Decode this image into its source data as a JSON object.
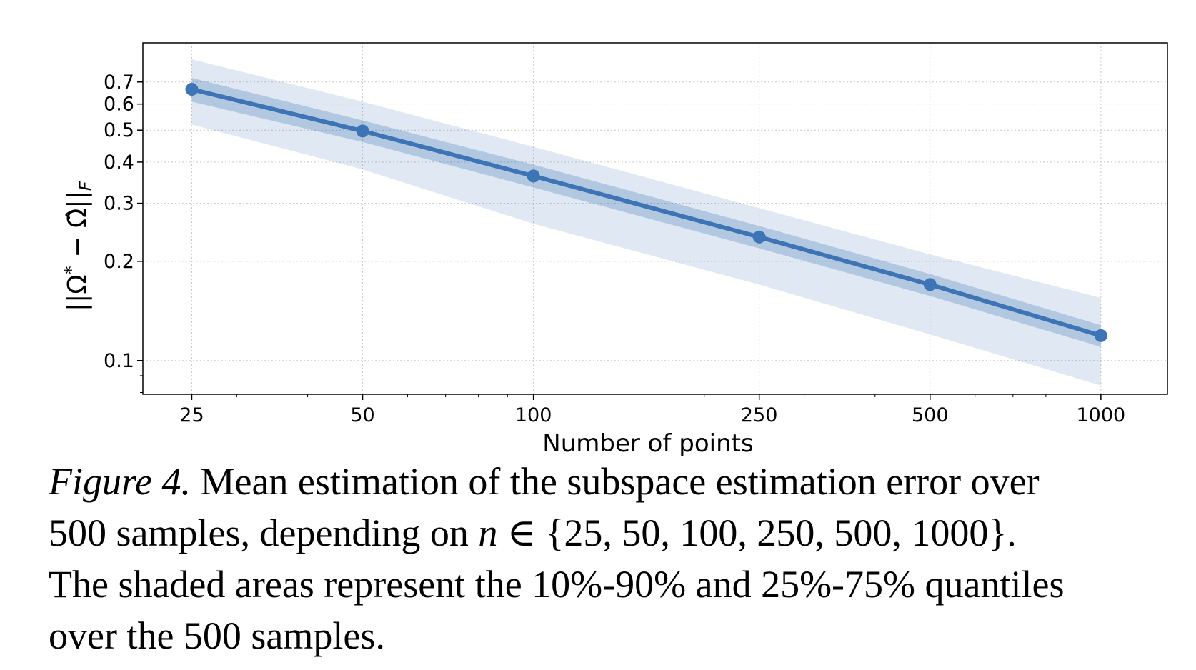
{
  "chart_data": {
    "type": "line",
    "xlabel": "Number of points",
    "ylabel": {
      "main": "||Ω",
      "sup": "*",
      "mid": " − Ω̂||",
      "sub": "F"
    },
    "xscale": "log",
    "yscale": "log",
    "xlim": [
      20.5,
      1310
    ],
    "ylim": [
      0.079,
      0.92
    ],
    "x_ticks": [
      25,
      50,
      100,
      250,
      500,
      1000
    ],
    "x_tick_labels": [
      "25",
      "50",
      "100",
      "250",
      "500",
      "1000"
    ],
    "y_ticks": [
      0.1,
      0.2,
      0.3,
      0.4,
      0.5,
      0.6,
      0.7
    ],
    "y_tick_labels": [
      "0.1",
      "0.2",
      "0.3",
      "0.4",
      "0.5",
      "0.6",
      "0.7"
    ],
    "grid": true,
    "color": "#3d74b5",
    "series": [
      {
        "x": [
          25,
          50,
          100,
          250,
          500,
          1000
        ],
        "mean": [
          0.665,
          0.497,
          0.363,
          0.237,
          0.17,
          0.119
        ],
        "q25": [
          0.61,
          0.46,
          0.335,
          0.219,
          0.157,
          0.11
        ],
        "q75": [
          0.72,
          0.535,
          0.393,
          0.256,
          0.183,
          0.128
        ],
        "q10": [
          0.52,
          0.38,
          0.26,
          0.17,
          0.12,
          0.084
        ],
        "q90": [
          0.82,
          0.61,
          0.445,
          0.29,
          0.21,
          0.155
        ]
      }
    ]
  },
  "caption": {
    "label": "Figure 4.",
    "line1": "Mean estimation of the subspace estimation error over",
    "line2_a": "500 samples, depending on ",
    "line2_var": "n",
    "line2_b": " ∈ {25, 50, 100, 250, 500, 1000}.",
    "line3": "The shaded areas represent the 10%-90% and 25%-75% quantiles",
    "line4": "over the 500 samples."
  }
}
